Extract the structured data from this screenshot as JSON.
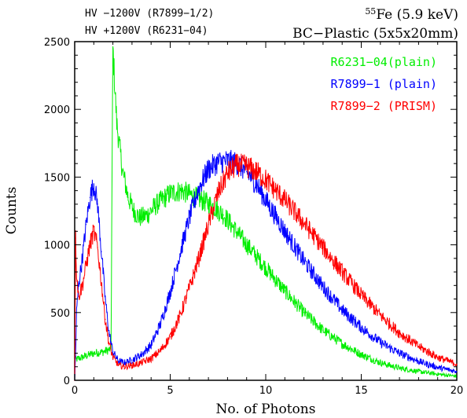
{
  "header": {
    "left_line1": "HV −1200V (R7899−1/2)",
    "left_line2": "HV +1200V (R6231−04)",
    "source_sup": "55",
    "source_rest": "Fe (5.9 keV)",
    "detector": "BC−Plastic (5x5x20mm)"
  },
  "chart_data": {
    "type": "line",
    "xlabel": "No. of Photons",
    "ylabel": "Counts",
    "xlim": [
      0,
      20
    ],
    "ylim": [
      0,
      2500
    ],
    "xticks": [
      0,
      5,
      10,
      15,
      20
    ],
    "yticks": [
      0,
      500,
      1000,
      1500,
      2000,
      2500
    ],
    "xtick_labels": [
      "0",
      "5",
      "10",
      "15",
      "20"
    ],
    "ytick_labels": [
      "0",
      "500",
      "1000",
      "1500",
      "2000",
      "2500"
    ],
    "grid": false,
    "legend_position": "top-right",
    "series": [
      {
        "name": "R6231−04(plain)",
        "color": "#00ee00",
        "x": [
          0,
          0.2,
          0.6,
          1.0,
          1.5,
          1.9,
          2.0,
          2.2,
          2.5,
          2.8,
          3.1,
          3.4,
          3.8,
          4.3,
          5.0,
          5.6,
          6.2,
          6.8,
          7.3,
          7.8,
          8.3,
          8.9,
          9.6,
          10.3,
          11.0,
          12.0,
          13.0,
          14.0,
          15.0,
          16.0,
          17.0,
          18.0,
          19.0,
          20.0
        ],
        "y": [
          150,
          160,
          180,
          200,
          210,
          230,
          2450,
          1900,
          1550,
          1350,
          1250,
          1200,
          1220,
          1300,
          1380,
          1400,
          1360,
          1320,
          1280,
          1220,
          1130,
          1020,
          900,
          780,
          660,
          500,
          370,
          270,
          190,
          130,
          90,
          65,
          45,
          30
        ]
      },
      {
        "name": "R7899−1 (plain)",
        "color": "#0000ff",
        "x": [
          0,
          0.05,
          0.1,
          0.2,
          0.4,
          0.6,
          0.8,
          1.0,
          1.2,
          1.4,
          1.6,
          1.8,
          2.0,
          2.3,
          2.6,
          3.0,
          3.5,
          4.0,
          4.5,
          5.0,
          5.5,
          6.0,
          6.5,
          7.0,
          7.5,
          8.0,
          8.5,
          9.0,
          9.5,
          10.0,
          11.0,
          12.0,
          13.0,
          14.0,
          15.0,
          16.0,
          17.0,
          18.0,
          19.0,
          20.0
        ],
        "y": [
          0,
          200,
          500,
          700,
          900,
          1150,
          1350,
          1450,
          1300,
          950,
          600,
          350,
          210,
          140,
          130,
          150,
          190,
          260,
          420,
          650,
          930,
          1200,
          1420,
          1560,
          1610,
          1620,
          1600,
          1540,
          1450,
          1330,
          1100,
          880,
          690,
          520,
          390,
          280,
          200,
          140,
          95,
          65
        ]
      },
      {
        "name": "R7899−2 (PRISM)",
        "color": "#ff0000",
        "x": [
          0,
          0.05,
          0.1,
          0.2,
          0.4,
          0.6,
          0.8,
          1.0,
          1.2,
          1.4,
          1.6,
          1.8,
          2.0,
          2.3,
          2.6,
          3.0,
          3.5,
          4.0,
          4.5,
          5.0,
          5.5,
          6.0,
          6.5,
          7.0,
          7.5,
          8.0,
          8.5,
          9.0,
          9.5,
          10.0,
          11.0,
          12.0,
          13.0,
          14.0,
          15.0,
          16.0,
          17.0,
          18.0,
          19.0,
          20.0
        ],
        "y": [
          0,
          1050,
          800,
          620,
          700,
          850,
          1000,
          1100,
          980,
          720,
          450,
          270,
          170,
          110,
          100,
          110,
          130,
          160,
          220,
          320,
          470,
          680,
          900,
          1150,
          1380,
          1530,
          1590,
          1580,
          1540,
          1480,
          1330,
          1160,
          980,
          800,
          630,
          480,
          350,
          250,
          170,
          120
        ]
      }
    ]
  }
}
